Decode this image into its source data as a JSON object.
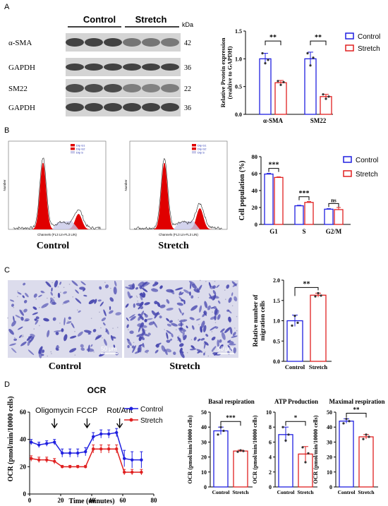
{
  "panels": {
    "A": "A",
    "B": "B",
    "C": "C",
    "D": "D"
  },
  "western_blot": {
    "group_labels": [
      "Control",
      "Stretch"
    ],
    "kda_label": "kDa",
    "rows": [
      {
        "protein": "α-SMA",
        "kda": "42"
      },
      {
        "protein": "GAPDH",
        "kda": "36"
      },
      {
        "protein": "SM22",
        "kda": "22"
      },
      {
        "protein": "GAPDH",
        "kda": "36"
      }
    ]
  },
  "colors": {
    "control": "#1f1fe0",
    "stretch": "#e02020",
    "blot_band": "#3a3a3a",
    "histogram_fill": "#e00000",
    "micro_bg": "#dcdcec",
    "micro_cell": "#4a4ab0"
  },
  "flow": [
    {
      "caption": "Control",
      "legend": [
        "Dip G1",
        "Dip G2",
        "Dip S"
      ],
      "xlabel": "Channels (FL3 Lin-FL3 LIN)",
      "ylabel": "Number"
    },
    {
      "caption": "Stretch",
      "legend": [
        "Dip G1",
        "Dip G2",
        "Dip S"
      ],
      "xlabel": "Channels (FL3 Lin-FL3 LIN)",
      "ylabel": "Number"
    }
  ],
  "micrographs": [
    {
      "caption": "Control",
      "scale": "50 μm"
    },
    {
      "caption": "Stretch",
      "scale": "50 μm"
    }
  ],
  "chart_data": [
    {
      "id": "A",
      "type": "bar",
      "categories": [
        "α-SMA",
        "SM22"
      ],
      "series": [
        {
          "name": "Control",
          "values": [
            1.0,
            1.0
          ],
          "errors": [
            0.1,
            0.12
          ],
          "points": [
            [
              1.1,
              0.92,
              0.98
            ],
            [
              1.1,
              0.88,
              1.02
            ]
          ]
        },
        {
          "name": "Stretch",
          "values": [
            0.57,
            0.32
          ],
          "errors": [
            0.04,
            0.04
          ],
          "points": [
            [
              0.6,
              0.53,
              0.58
            ],
            [
              0.36,
              0.28,
              0.32
            ]
          ]
        }
      ],
      "ylabel": "Relative Protein expression (realtive to GAPDH)",
      "ylim": [
        0,
        1.5
      ],
      "yticks": [
        "0.0",
        "0.5",
        "1.0",
        "1.5"
      ],
      "significance": [
        "**",
        "**"
      ]
    },
    {
      "id": "B",
      "type": "bar",
      "categories": [
        "G1",
        "S",
        "G2/M"
      ],
      "series": [
        {
          "name": "Control",
          "values": [
            59.5,
            22.0,
            18.0
          ],
          "errors": [
            0.8,
            0.6,
            0.6
          ]
        },
        {
          "name": "Stretch",
          "values": [
            55.5,
            26.0,
            17.5
          ],
          "errors": [
            0.6,
            1.0,
            2.5
          ]
        }
      ],
      "ylabel": "Cell population (%)",
      "ylim": [
        0,
        80
      ],
      "yticks": [
        "0",
        "20",
        "40",
        "60",
        "80"
      ],
      "significance": [
        "***",
        "***",
        "ns"
      ]
    },
    {
      "id": "C",
      "type": "bar",
      "categories": [
        "Control",
        "Stretch"
      ],
      "values": [
        1.0,
        1.63
      ],
      "errors": [
        0.14,
        0.05
      ],
      "points": [
        [
          0.88,
          1.12,
          0.95
        ],
        [
          1.6,
          1.68,
          1.62
        ]
      ],
      "colors": [
        "#1f1fe0",
        "#e02020"
      ],
      "ylabel": "Relative number of migration cells",
      "ylim": [
        0,
        2.0
      ],
      "yticks": [
        "0.0",
        "0.5",
        "1.0",
        "1.5",
        "2.0"
      ],
      "significance": "**"
    },
    {
      "id": "D-OCR",
      "type": "line",
      "title": "OCR",
      "xlabel": "Time (minutes)",
      "ylabel": "OCR (pmol/min/10000 cells)",
      "xlim": [
        0,
        80
      ],
      "ylim": [
        0,
        60
      ],
      "xticks": [
        "0",
        "20",
        "40",
        "60",
        "80"
      ],
      "yticks": [
        "0",
        "20",
        "40",
        "60"
      ],
      "annotations": [
        {
          "label": "Oligomycin",
          "x": 16
        },
        {
          "label": "FCCP",
          "x": 37
        },
        {
          "label": "Rot/Ant",
          "x": 58
        }
      ],
      "series": [
        {
          "name": "Control",
          "x": [
            1,
            6,
            11,
            16,
            21,
            26,
            31,
            36,
            41,
            46,
            51,
            56,
            61,
            66,
            72
          ],
          "y": [
            38,
            36,
            37,
            38,
            30,
            30,
            30,
            31,
            42,
            44,
            44,
            45,
            26,
            25,
            25
          ],
          "err": [
            2,
            2,
            2,
            2,
            3,
            3,
            3,
            3,
            3,
            3,
            3,
            3,
            6,
            6,
            6
          ]
        },
        {
          "name": "Stretch",
          "x": [
            1,
            6,
            11,
            16,
            21,
            26,
            31,
            36,
            41,
            46,
            51,
            56,
            61,
            66,
            72
          ],
          "y": [
            26,
            25,
            25,
            24,
            20,
            20,
            20,
            20,
            33,
            33,
            33,
            33,
            16,
            16,
            16
          ],
          "err": [
            2,
            2,
            2,
            2,
            1,
            1,
            1,
            1,
            3,
            3,
            3,
            3,
            2,
            2,
            2
          ]
        }
      ]
    },
    {
      "id": "D-basal",
      "type": "bar",
      "title": "Basal respiration",
      "categories": [
        "Control",
        "Stretch"
      ],
      "values": [
        37.5,
        24.0
      ],
      "errors": [
        2.5,
        0.6
      ],
      "points": [
        [
          35,
          40,
          37.5
        ],
        [
          23.5,
          24.5,
          24
        ]
      ],
      "ylabel": "OCR (pmol/min/10000 cells)",
      "ylim": [
        0,
        50
      ],
      "yticks": [
        "0",
        "10",
        "20",
        "30",
        "40",
        "50"
      ],
      "significance": "***"
    },
    {
      "id": "D-atp",
      "type": "bar",
      "title": "ATP Production",
      "categories": [
        "Control",
        "Stretch"
      ],
      "values": [
        7.0,
        4.4
      ],
      "errors": [
        1.0,
        1.0
      ],
      "points": [
        [
          8.0,
          6.2,
          7.0
        ],
        [
          5.3,
          3.3,
          4.5
        ]
      ],
      "ylabel": "OCR (pmol/min/10000 cells)",
      "ylim": [
        0,
        10
      ],
      "yticks": [
        "0",
        "2",
        "4",
        "6",
        "8",
        "10"
      ],
      "significance": "*"
    },
    {
      "id": "D-max",
      "type": "bar",
      "title": "Maximal respiration",
      "categories": [
        "Control",
        "Stretch"
      ],
      "values": [
        44.0,
        33.5
      ],
      "errors": [
        1.5,
        1.5
      ],
      "points": [
        [
          42.5,
          45.5,
          44
        ],
        [
          32,
          35,
          33.5
        ]
      ],
      "ylabel": "OCR (pmol/min/10000 cells)",
      "ylim": [
        0,
        50
      ],
      "yticks": [
        "0",
        "10",
        "20",
        "30",
        "40",
        "50"
      ],
      "significance": "**"
    }
  ]
}
